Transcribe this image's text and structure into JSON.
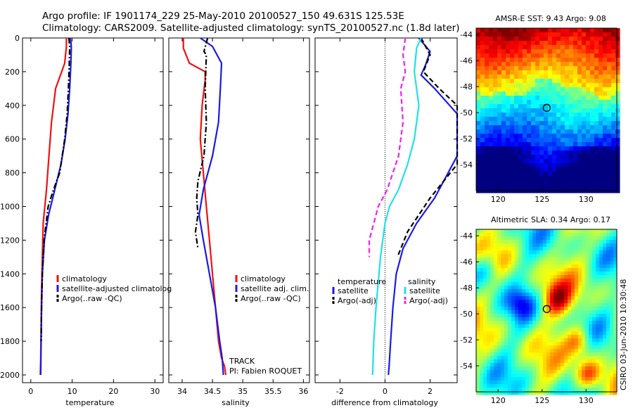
{
  "header": {
    "line1": "Argo profile: IF 1901174_229 25-May-2010 20100527_150 49.631S 125.53E",
    "line2": "Climatology: CARS2009. Satellite-adjusted climatology: synTS_20100527.nc (1.8d later)"
  },
  "colors": {
    "climatology": "#ee1111",
    "satellite": "#1a1ae6",
    "argo": "#000000",
    "salinity_satellite": "#22e0e8",
    "salinity_argo": "#ee22ee"
  },
  "side_label": "CSIRO 03-Jun-2010 10:30:48",
  "track_text": "TRACK",
  "pi_text": "PI: Fabien ROQUET",
  "chart_data": [
    {
      "type": "line",
      "xlabel": "temperature",
      "xticks": [
        "0",
        "10",
        "20",
        "30"
      ],
      "yticks": [
        "0",
        "200",
        "400",
        "600",
        "800",
        "1000",
        "1200",
        "1400",
        "1600",
        "1800",
        "2000"
      ],
      "xlim": [
        -2,
        32
      ],
      "ylim": [
        2000,
        0
      ],
      "series": [
        {
          "name": "climatology",
          "color_key": "climatology",
          "dash": "solid",
          "x": [
            8.6,
            8.6,
            8.2,
            6.0,
            5.0,
            4.4,
            3.8,
            3.0,
            2.8,
            2.6,
            2.5,
            2.4,
            2.3
          ],
          "y": [
            0,
            50,
            150,
            300,
            500,
            700,
            900,
            1100,
            1300,
            1500,
            1700,
            1900,
            2000
          ]
        },
        {
          "name": "satellite-adjusted climatology",
          "color_key": "satellite",
          "dash": "solid",
          "x": [
            9.6,
            9.8,
            9.7,
            9.4,
            9.0,
            8.3,
            7.3,
            5.8,
            4.3,
            3.3,
            2.8,
            2.6,
            2.5,
            2.4
          ],
          "y": [
            0,
            50,
            150,
            300,
            450,
            600,
            750,
            900,
            1050,
            1200,
            1400,
            1600,
            1800,
            2000
          ]
        },
        {
          "name": "Argo(..raw -QC)",
          "color_key": "argo",
          "dash": "dashdot",
          "x": [
            9.2,
            9.4,
            9.3,
            9.1,
            8.8,
            8.2,
            7.0,
            5.5,
            4.2,
            3.2,
            2.8,
            2.6,
            2.5
          ],
          "y": [
            0,
            50,
            150,
            300,
            450,
            600,
            800,
            900,
            1000,
            1200,
            1400,
            1600,
            1800
          ]
        }
      ],
      "legend": [
        "climatology",
        "satellite-adjusted climatolog",
        "Argo(..raw -QC)"
      ]
    },
    {
      "type": "line",
      "xlabel": "salinity",
      "xticks": [
        "34",
        "34.5",
        "35",
        "35.5",
        "36"
      ],
      "xlim": [
        33.78,
        36.1
      ],
      "ylim": [
        2000,
        0
      ],
      "series": [
        {
          "name": "climatology",
          "color_key": "climatology",
          "dash": "solid",
          "x": [
            34.02,
            34.02,
            34.12,
            34.38,
            34.38,
            34.33,
            34.3,
            34.35,
            34.4,
            34.45,
            34.5,
            34.55,
            34.6,
            34.65,
            34.7,
            34.72
          ],
          "y": [
            0,
            60,
            150,
            200,
            250,
            400,
            600,
            800,
            1000,
            1200,
            1400,
            1600,
            1800,
            1900,
            1950,
            2000
          ]
        },
        {
          "name": "satellite adj. clim.",
          "color_key": "satellite",
          "dash": "solid",
          "x": [
            34.3,
            34.5,
            34.65,
            34.63,
            34.6,
            34.5,
            34.35,
            34.28,
            34.35,
            34.45,
            34.55,
            34.62,
            34.66,
            34.68
          ],
          "y": [
            0,
            50,
            150,
            300,
            500,
            700,
            900,
            1050,
            1200,
            1400,
            1600,
            1800,
            1900,
            2000
          ]
        },
        {
          "name": "Argo(..raw -QC)",
          "color_key": "argo",
          "dash": "dashdot",
          "x": [
            34.42,
            34.36,
            34.4,
            34.38,
            34.4,
            34.36,
            34.26,
            34.24,
            34.26,
            34.22,
            34.26
          ],
          "y": [
            0,
            80,
            100,
            300,
            500,
            700,
            850,
            950,
            1050,
            1150,
            1250
          ]
        }
      ],
      "legend": [
        "climatology",
        "satellite adj. clim.",
        "Argo(..raw -QC)"
      ]
    },
    {
      "type": "line",
      "xlabel": "difference from climatology",
      "xticks": [
        "-2",
        "0",
        "2"
      ],
      "xlim": [
        -3.1,
        3.2
      ],
      "ylim": [
        2000,
        0
      ],
      "zero_line": true,
      "series": [
        {
          "name": "temperature satellite",
          "color_key": "satellite",
          "dash": "solid",
          "x": [
            1.5,
            2.0,
            1.8,
            1.6,
            2.2,
            3.2,
            3.2,
            2.2,
            1.4,
            0.8,
            0.5,
            0.35,
            0.25,
            0.18,
            0.15
          ],
          "y": [
            0,
            80,
            160,
            220,
            300,
            450,
            700,
            950,
            1100,
            1250,
            1400,
            1600,
            1800,
            1950,
            2000
          ]
        },
        {
          "name": "temperature Argo(-adj)",
          "color_key": "argo",
          "dash": "dashed",
          "x": [
            1.6,
            2.0,
            1.7,
            2.4,
            3.2,
            3.2,
            2.0,
            1.0,
            0.55
          ],
          "y": [
            0,
            100,
            200,
            300,
            400,
            750,
            950,
            1150,
            1300
          ]
        },
        {
          "name": "salinity satellite",
          "color_key": "salinity_satellite",
          "dash": "solid",
          "x": [
            1.6,
            1.4,
            1.3,
            1.5,
            1.3,
            1.0,
            0.6,
            0.2,
            0.0,
            -0.2,
            -0.4,
            -0.5,
            -0.55
          ],
          "y": [
            0,
            60,
            200,
            400,
            600,
            750,
            900,
            1000,
            1100,
            1300,
            1600,
            1800,
            2000
          ]
        },
        {
          "name": "salinity Argo(-adj)",
          "color_key": "salinity_argo",
          "dash": "dashed",
          "x": [
            0.9,
            0.8,
            0.9,
            0.7,
            0.8,
            0.6,
            0.1,
            -0.3,
            -0.7,
            -0.7
          ],
          "y": [
            0,
            100,
            200,
            300,
            500,
            700,
            900,
            1000,
            1200,
            1300
          ]
        }
      ],
      "legend_headers": [
        "temperature",
        "salinity"
      ],
      "legend": [
        "satellite",
        "Argo(-adj)",
        "satellite",
        "Argo(-adj)"
      ]
    },
    {
      "type": "heatmap",
      "title": "AMSR-E SST: 9.43 Argo: 9.08",
      "xticks": [
        "120",
        "125",
        "130"
      ],
      "yticks": [
        "-44",
        "-46",
        "-48",
        "-50",
        "-52",
        "-54"
      ],
      "xlim": [
        117.5,
        133.5
      ],
      "ylim": [
        -56,
        -43.5
      ],
      "marker": {
        "lon": 125.53,
        "lat": -49.631
      }
    },
    {
      "type": "heatmap",
      "title": "Altimetric SLA: 0.34 Argo: 0.17",
      "xticks": [
        "120",
        "125",
        "130"
      ],
      "yticks": [
        "-44",
        "-46",
        "-48",
        "-50",
        "-52",
        "-54"
      ],
      "xlim": [
        117.5,
        133.5
      ],
      "ylim": [
        -56,
        -43.5
      ],
      "marker": {
        "lon": 125.53,
        "lat": -49.631
      }
    }
  ]
}
